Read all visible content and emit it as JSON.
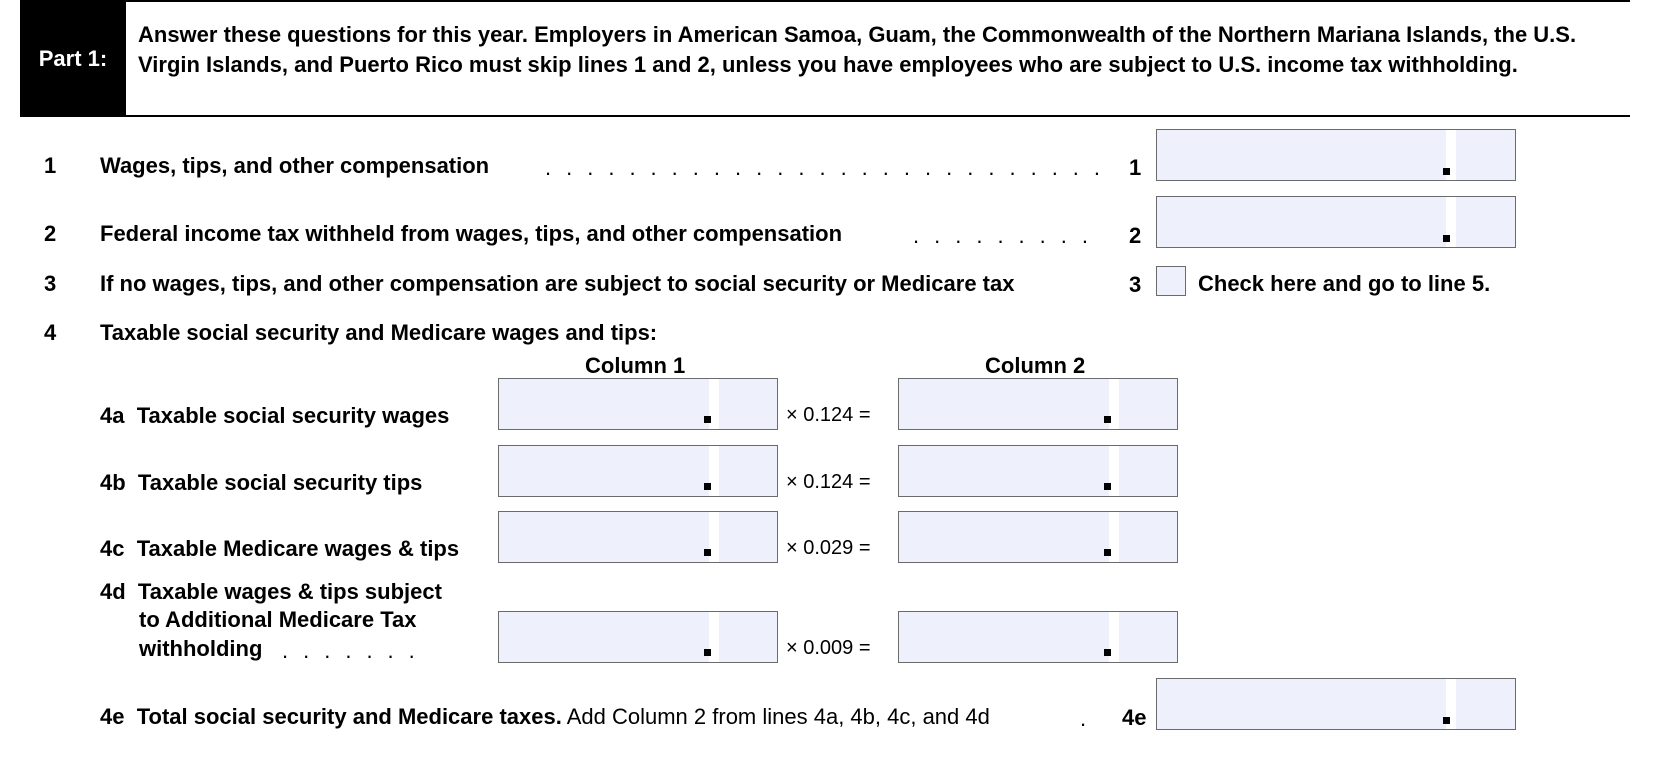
{
  "part": {
    "tag": "Part 1:",
    "instructions": "Answer these questions for this year. Employers in American Samoa, Guam, the Commonwealth of the Northern Mariana Islands, the U.S. Virgin Islands, and Puerto Rico must skip lines 1 and 2, unless you have employees who are subject to U.S. income tax withholding."
  },
  "lines": {
    "l1": {
      "num": "1",
      "text": "Wages, tips, and other compensation",
      "box_label": "1",
      "value": ""
    },
    "l2": {
      "num": "2",
      "text": "Federal income tax withheld from wages, tips, and other compensation",
      "box_label": "2",
      "value": ""
    },
    "l3": {
      "num": "3",
      "text": "If no wages, tips, and other compensation are subject to social security or Medicare tax",
      "box_label": "3",
      "checkbox_text": "Check here and go to line 5.",
      "checked": false
    },
    "l4": {
      "num": "4",
      "text": "Taxable social security and Medicare wages and tips:"
    }
  },
  "columns": {
    "col1": "Column 1",
    "col2": "Column 2"
  },
  "sublines": {
    "l4a": {
      "label": "4a",
      "text": "Taxable social security wages",
      "multiplier": "× 0.124 ="
    },
    "l4b": {
      "label": "4b",
      "text": "Taxable social security tips",
      "multiplier": "× 0.124 ="
    },
    "l4c": {
      "label": "4c",
      "text": "Taxable Medicare wages & tips",
      "multiplier": "× 0.029 ="
    },
    "l4d": {
      "label": "4d",
      "text_line1": "Taxable wages & tips subject",
      "text_line2": "to Additional Medicare Tax",
      "text_line3": "withholding",
      "multiplier": "× 0.009 ="
    },
    "l4e": {
      "label": "4e",
      "text_bold": "Total social security and Medicare taxes.",
      "text_normal": " Add Column 2 from lines 4a, 4b, 4c, and 4d",
      "box_label": "4e"
    }
  },
  "colors": {
    "field_fill": "#eef0fb",
    "header_fill": "#000000"
  }
}
